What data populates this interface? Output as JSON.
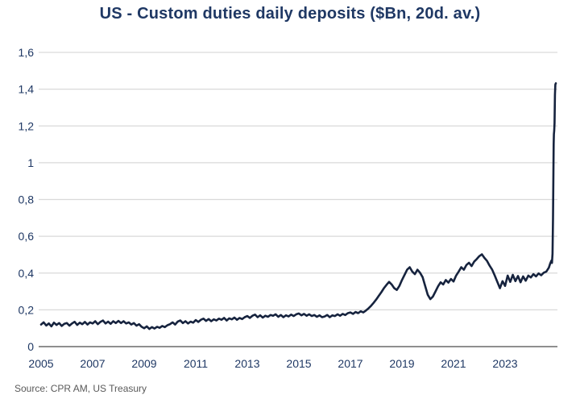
{
  "source": "Source: CPR AM, US Treasury",
  "colors": {
    "line": "#16233e",
    "axis_text": "#1f3864",
    "grid": "#d9d9d9",
    "baseline": "#8f8f8f",
    "title": "#1f3864",
    "source_text": "#595959",
    "background": "#ffffff"
  },
  "chart_data": {
    "type": "line",
    "title": "US - Custom duties daily deposits ($Bn, 20d. av.)",
    "xlabel": "",
    "ylabel": "",
    "x_range": [
      2005,
      2025
    ],
    "ylim": [
      0,
      1.6
    ],
    "grid": "horizontal-only",
    "legend": "none",
    "y_ticks": [
      {
        "v": 0.0,
        "label": "0"
      },
      {
        "v": 0.2,
        "label": "0,2"
      },
      {
        "v": 0.4,
        "label": "0,4"
      },
      {
        "v": 0.6,
        "label": "0,6"
      },
      {
        "v": 0.8,
        "label": "0,8"
      },
      {
        "v": 1.0,
        "label": "1"
      },
      {
        "v": 1.2,
        "label": "1,2"
      },
      {
        "v": 1.4,
        "label": "1,4"
      },
      {
        "v": 1.6,
        "label": "1,6"
      }
    ],
    "x_ticks": [
      2005,
      2007,
      2009,
      2011,
      2013,
      2015,
      2017,
      2019,
      2021,
      2023
    ],
    "series_name": "US customs duties daily deposits, $Bn, 20-day average",
    "series": {
      "start_year": 2005.0,
      "step_years": 0.1,
      "values": [
        0.12,
        0.132,
        0.115,
        0.126,
        0.11,
        0.13,
        0.118,
        0.128,
        0.112,
        0.124,
        0.128,
        0.114,
        0.126,
        0.135,
        0.118,
        0.13,
        0.122,
        0.134,
        0.12,
        0.132,
        0.126,
        0.138,
        0.122,
        0.134,
        0.142,
        0.126,
        0.136,
        0.124,
        0.138,
        0.128,
        0.14,
        0.128,
        0.138,
        0.126,
        0.132,
        0.12,
        0.128,
        0.114,
        0.122,
        0.108,
        0.1,
        0.11,
        0.096,
        0.106,
        0.098,
        0.108,
        0.102,
        0.112,
        0.106,
        0.116,
        0.122,
        0.132,
        0.12,
        0.136,
        0.142,
        0.128,
        0.138,
        0.126,
        0.136,
        0.13,
        0.144,
        0.134,
        0.146,
        0.152,
        0.14,
        0.15,
        0.138,
        0.148,
        0.142,
        0.152,
        0.146,
        0.156,
        0.142,
        0.154,
        0.148,
        0.158,
        0.146,
        0.156,
        0.15,
        0.16,
        0.166,
        0.156,
        0.168,
        0.174,
        0.16,
        0.17,
        0.158,
        0.168,
        0.162,
        0.172,
        0.168,
        0.176,
        0.162,
        0.172,
        0.16,
        0.17,
        0.164,
        0.174,
        0.166,
        0.176,
        0.18,
        0.17,
        0.178,
        0.168,
        0.176,
        0.166,
        0.172,
        0.162,
        0.17,
        0.16,
        0.164,
        0.172,
        0.16,
        0.17,
        0.166,
        0.176,
        0.168,
        0.178,
        0.172,
        0.182,
        0.186,
        0.178,
        0.188,
        0.182,
        0.192,
        0.186,
        0.196,
        0.208,
        0.222,
        0.238,
        0.256,
        0.276,
        0.296,
        0.318,
        0.336,
        0.352,
        0.338,
        0.318,
        0.308,
        0.33,
        0.362,
        0.39,
        0.418,
        0.432,
        0.408,
        0.394,
        0.418,
        0.402,
        0.378,
        0.33,
        0.282,
        0.258,
        0.272,
        0.3,
        0.328,
        0.35,
        0.338,
        0.362,
        0.348,
        0.368,
        0.354,
        0.386,
        0.408,
        0.432,
        0.418,
        0.444,
        0.456,
        0.438,
        0.462,
        0.476,
        0.492,
        0.502,
        0.482,
        0.466,
        0.44,
        0.418,
        0.386,
        0.352,
        0.318,
        0.356,
        0.33,
        0.386,
        0.352,
        0.39,
        0.356,
        0.384,
        0.35,
        0.382,
        0.358,
        0.386,
        0.376,
        0.394,
        0.382,
        0.398,
        0.388,
        0.402,
        0.408,
        0.43
      ],
      "tail_points": [
        [
          2024.75,
          0.452
        ],
        [
          2024.8,
          0.468
        ],
        [
          2024.82,
          0.455
        ],
        [
          2024.84,
          0.505
        ],
        [
          2024.86,
          0.7
        ],
        [
          2024.875,
          0.95
        ],
        [
          2024.885,
          1.1
        ],
        [
          2024.895,
          1.155
        ],
        [
          2024.905,
          1.175
        ],
        [
          2024.92,
          1.215
        ],
        [
          2024.935,
          1.37
        ],
        [
          2024.95,
          1.425
        ],
        [
          2024.97,
          1.432
        ]
      ]
    },
    "notable_values": {
      "pre_2017_plateau": 0.12,
      "2019_peak": 0.43,
      "2020_trough": 0.26,
      "2022_peak": 0.5,
      "final_peak": 1.43
    }
  }
}
